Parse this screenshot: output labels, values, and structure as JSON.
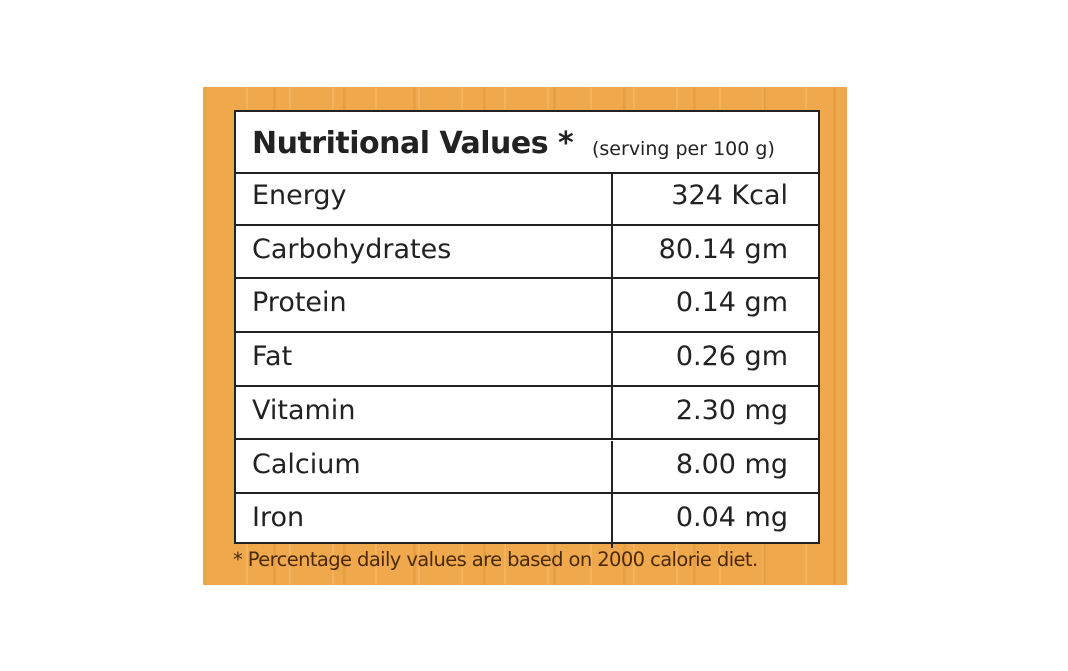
{
  "header": {
    "title": "Nutritional Values *",
    "subtitle": "(serving per 100 g)"
  },
  "table": {
    "rows": [
      [
        "Energy",
        "324 Kcal"
      ],
      [
        "Carbohydrates",
        "80.14 gm"
      ],
      [
        "Protein",
        "0.14 gm"
      ],
      [
        "Fat",
        "0.26 gm"
      ],
      [
        "Vitamin",
        "2.30 mg"
      ],
      [
        "Calcium",
        "8.00 mg"
      ],
      [
        "Iron",
        "0.04 mg"
      ]
    ]
  },
  "footnote": "* Percentage daily values are based on 2000 calorie diet."
}
